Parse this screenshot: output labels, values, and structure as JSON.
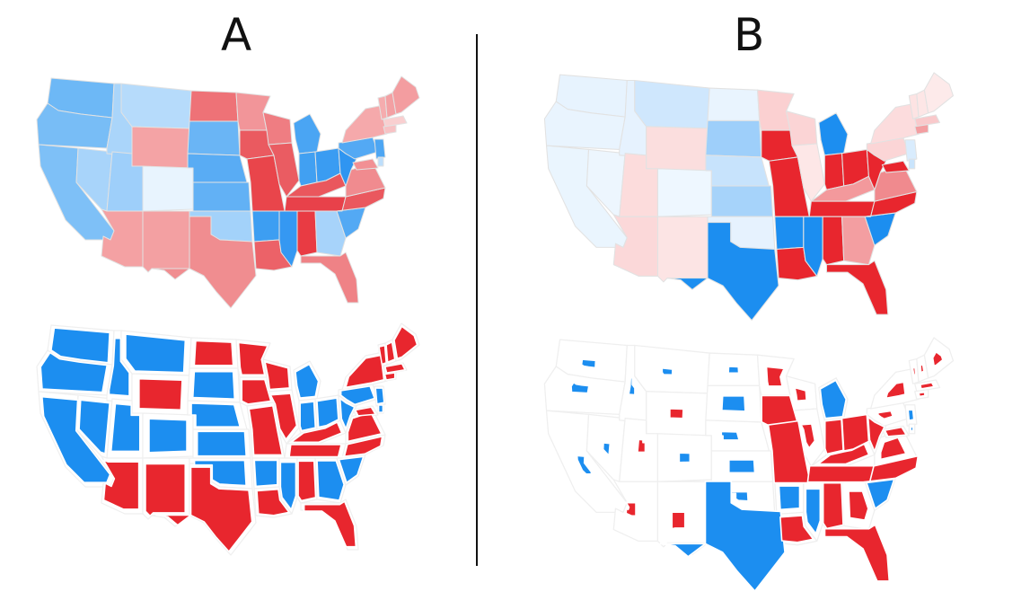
{
  "labels": {
    "a": "A",
    "b": "B"
  },
  "colors": {
    "red": "#e8262e",
    "blue": "#1c8ef0",
    "outline": "#e2e2e2",
    "background": "#ffffff"
  },
  "maps": [
    {
      "panel": "A",
      "kind": "shaded",
      "states": {
        "WA": "#6db8f6",
        "OR": "#78bdf6",
        "CA": "#7ec0f7",
        "NV": "#a8d4fa",
        "ID": "#aad5fa",
        "MT": "#b6dbfb",
        "WY": "#f4a3a5",
        "UT": "#9ecffa",
        "AZ": "#f4a1a3",
        "CO": "#e8f4fe",
        "NM": "#f3a0a2",
        "ND": "#ee7277",
        "SD": "#6ab5f5",
        "NE": "#59acf4",
        "KS": "#62b1f5",
        "OK": "#a3d2fa",
        "TX": "#f08d90",
        "MN": "#f29599",
        "IA": "#ea5a60",
        "MO": "#e9454b",
        "AR": "#3d9ef2",
        "LA": "#ec6268",
        "WI": "#ef7d82",
        "IL": "#ea5c62",
        "MI": "#4aa5f3",
        "IN": "#41a0f2",
        "OH": "#3a9cf2",
        "KY": "#ea575d",
        "TN": "#e8414a",
        "MS": "#3598f2",
        "AL": "#e93b43",
        "GA": "#a7d3fa",
        "FL": "#ef8286",
        "SC": "#53a9f4",
        "NC": "#ea585e",
        "VA": "#f08b8f",
        "WV": "#2f95f1",
        "PA": "#53a9f4",
        "NY": "#f5a9ab",
        "VT": "#f5acae",
        "NH": "#f3a0a3",
        "ME": "#f39da0",
        "MA": "#f9cfd0",
        "CT": "#f7c2c4",
        "NJ": "#4da6f3",
        "MD": "#f29094",
        "DE": "#bddefb"
      }
    },
    {
      "panel": "A",
      "kind": "cartogram",
      "states": {
        "WA": "blue",
        "OR": "blue",
        "CA": "blue",
        "NV": "blue",
        "ID": "blue",
        "MT": "blue",
        "WY": "red",
        "UT": "blue",
        "AZ": "red",
        "CO": "blue",
        "NM": "red",
        "ND": "red",
        "SD": "blue",
        "NE": "blue",
        "KS": "blue",
        "OK": "blue",
        "TX": "red",
        "MN": "red",
        "IA": "red",
        "MO": "red",
        "AR": "blue",
        "LA": "red",
        "WI": "red",
        "IL": "red",
        "MI": "blue",
        "IN": "blue",
        "OH": "blue",
        "KY": "red",
        "TN": "red",
        "MS": "blue",
        "AL": "red",
        "GA": "blue",
        "FL": "red",
        "SC": "blue",
        "NC": "red",
        "VA": "red",
        "WV": "blue",
        "PA": "blue",
        "NY": "red",
        "VT": "red",
        "NH": "red",
        "ME": "red",
        "MA": "red",
        "CT": "red",
        "NJ": "blue",
        "MD": "red",
        "DE": "blue"
      }
    },
    {
      "panel": "B",
      "kind": "shaded",
      "states": {
        "WA": "#e7f3fe",
        "OR": "#e9f4fe",
        "CA": "#eaf5fe",
        "NV": "#edf6fe",
        "ID": "#e6f2fe",
        "MT": "#cfe7fd",
        "WY": "#fbdede",
        "UT": "#fcdcdc",
        "AZ": "#fbd8d9",
        "CO": "#eef7ff",
        "NM": "#fce4e4",
        "ND": "#e9f4fe",
        "SD": "#9ecffa",
        "NE": "#c7e3fc",
        "KS": "#a6d3fa",
        "OK": "#e6f2fe",
        "TX": "#1c8ef0",
        "MN": "#fbd0d1",
        "IA": "#e8262e",
        "MO": "#e8262e",
        "AR": "#1c8ef0",
        "LA": "#e8262e",
        "WI": "#fbd4d5",
        "IL": "#fde7e7",
        "MI": "#1c8ef0",
        "IN": "#e8262e",
        "OH": "#e8262e",
        "KY": "#f3999c",
        "TN": "#e8262e",
        "MS": "#1c8ef0",
        "AL": "#e8262e",
        "GA": "#f39ea1",
        "FL": "#e8262e",
        "SC": "#1c8ef0",
        "NC": "#e8262e",
        "VA": "#f08a8e",
        "WV": "#e8262e",
        "PA": "#fbd5d6",
        "NY": "#fcdcdd",
        "VT": "#fde3e3",
        "NH": "#fde6e6",
        "ME": "#fdeaea",
        "MA": "#f9c9cb",
        "CT": "#f39ea1",
        "NJ": "#d9ecfd",
        "MD": "#e8262e",
        "DE": "#c9e4fc"
      }
    },
    {
      "panel": "B",
      "kind": "cartogram",
      "states": {
        "WA": "blue",
        "OR": "blue",
        "CA": "blue",
        "NV": "blue",
        "ID": "blue",
        "MT": "blue",
        "WY": "red",
        "UT": "red",
        "AZ": "red",
        "CO": "blue",
        "NM": "red",
        "ND": "blue",
        "SD": "blue",
        "NE": "blue",
        "KS": "blue",
        "OK": "blue",
        "TX": "blue",
        "MN": "red",
        "IA": "red",
        "MO": "red",
        "AR": "blue",
        "LA": "red",
        "WI": "red",
        "IL": "red",
        "MI": "blue",
        "IN": "red",
        "OH": "red",
        "KY": "red",
        "TN": "red",
        "MS": "blue",
        "AL": "red",
        "GA": "red",
        "FL": "red",
        "SC": "blue",
        "NC": "red",
        "VA": "red",
        "WV": "red",
        "PA": "red",
        "NY": "red",
        "VT": "red",
        "NH": "red",
        "ME": "red",
        "MA": "red",
        "CT": "red",
        "NJ": "blue",
        "MD": "red",
        "DE": "blue"
      }
    }
  ]
}
